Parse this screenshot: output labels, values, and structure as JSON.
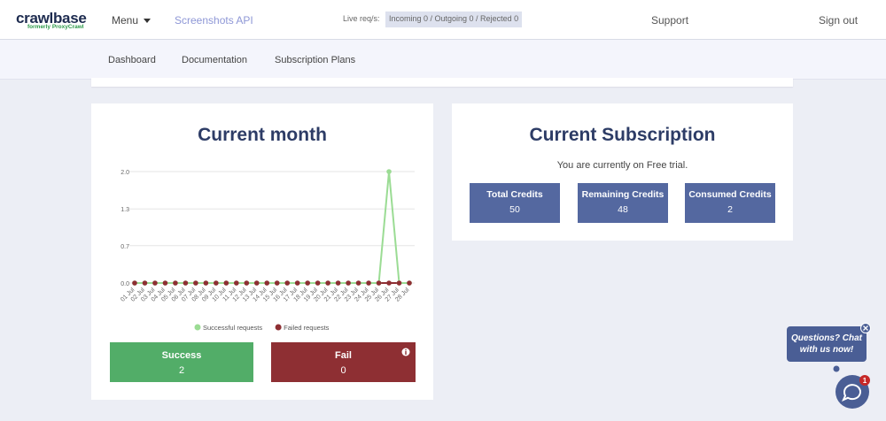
{
  "header": {
    "logo": "crawlbase",
    "logo_sub": "formerly ProxyCrawl",
    "menu": "Menu",
    "product": "Screenshots API",
    "live_label": "Live req/s:",
    "live_value": "Incoming 0 / Outgoing 0 / Rejected 0",
    "support": "Support",
    "sign_out": "Sign out"
  },
  "tabs": [
    "Dashboard",
    "Documentation",
    "Subscription Plans"
  ],
  "current_month": {
    "title": "Current month",
    "success_label": "Success",
    "success_value": "2",
    "fail_label": "Fail",
    "fail_value": "0"
  },
  "subscription": {
    "title": "Current Subscription",
    "note": "You are currently on Free trial.",
    "boxes": [
      {
        "label": "Total Credits",
        "value": "50"
      },
      {
        "label": "Remaining Credits",
        "value": "48"
      },
      {
        "label": "Consumed Credits",
        "value": "2"
      }
    ]
  },
  "chat": {
    "text": "Questions? Chat with us now!",
    "badge": "1"
  },
  "chart_data": {
    "type": "line",
    "categories": [
      "01 Jul",
      "02 Jul",
      "03 Jul",
      "04 Jul",
      "05 Jul",
      "06 Jul",
      "07 Jul",
      "08 Jul",
      "09 Jul",
      "10 Jul",
      "11 Jul",
      "12 Jul",
      "13 Jul",
      "14 Jul",
      "15 Jul",
      "16 Jul",
      "17 Jul",
      "18 Jul",
      "19 Jul",
      "20 Jul",
      "21 Jul",
      "22 Jul",
      "23 Jul",
      "24 Jul",
      "25 Jul",
      "26 Jul",
      "27 Jul",
      "28 Jul"
    ],
    "series": [
      {
        "name": "Successful requests",
        "color": "#9bdc94",
        "values": [
          0,
          0,
          0,
          0,
          0,
          0,
          0,
          0,
          0,
          0,
          0,
          0,
          0,
          0,
          0,
          0,
          0,
          0,
          0,
          0,
          0,
          0,
          0,
          0,
          0,
          2,
          0,
          0
        ]
      },
      {
        "name": "Failed requests",
        "color": "#8e2f33",
        "values": [
          0,
          0,
          0,
          0,
          0,
          0,
          0,
          0,
          0,
          0,
          0,
          0,
          0,
          0,
          0,
          0,
          0,
          0,
          0,
          0,
          0,
          0,
          0,
          0,
          0,
          0,
          0,
          0
        ]
      }
    ],
    "ylim": [
      0,
      2
    ],
    "yticks": [
      {
        "value": 0,
        "label": "0.0"
      },
      {
        "value": 0.67,
        "label": "0.7"
      },
      {
        "value": 1.33,
        "label": "1.3"
      },
      {
        "value": 2,
        "label": "2.0"
      }
    ],
    "grid": true
  }
}
